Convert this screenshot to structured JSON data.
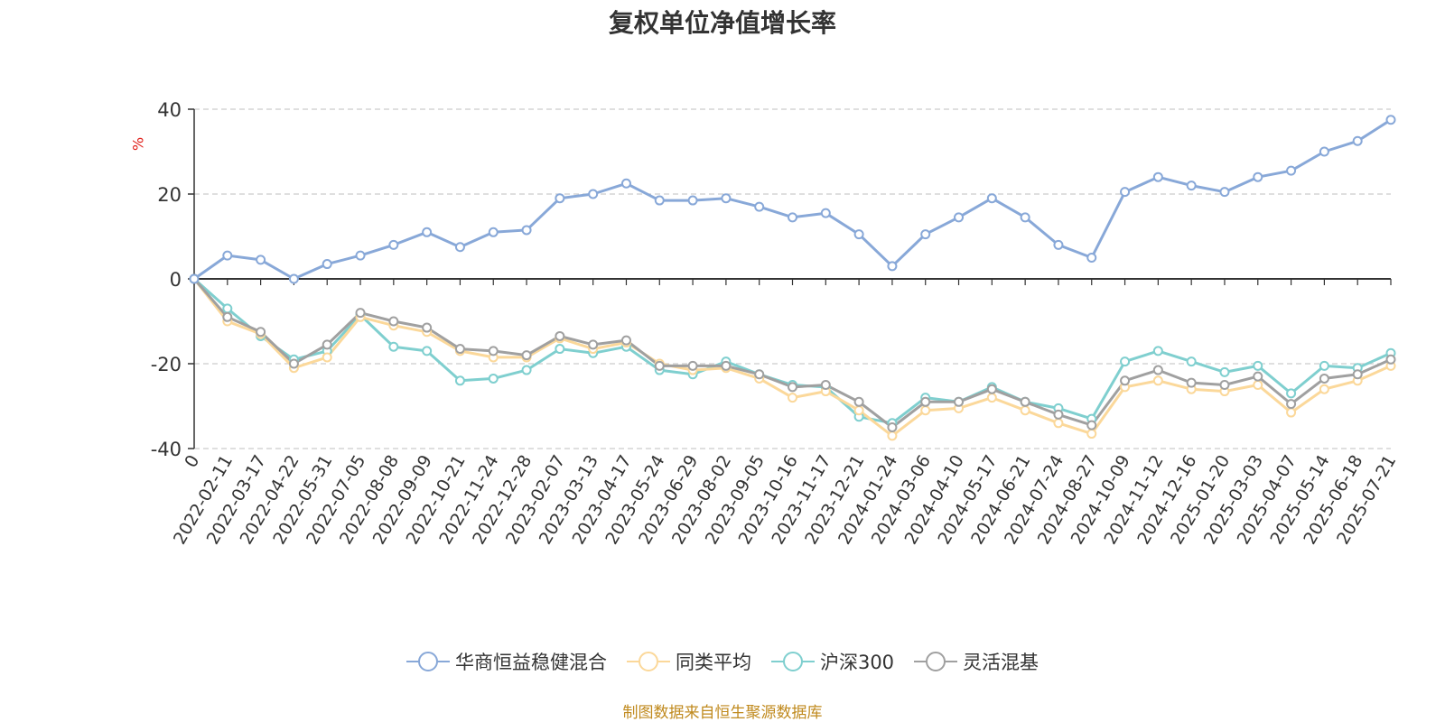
{
  "title": "复权单位净值增长率",
  "unit_label": "%",
  "source_note": "制图数据来自恒生聚源数据库",
  "chart_data": {
    "type": "line",
    "title": "复权单位净值增长率",
    "ylabel": "%",
    "ylim": [
      -40,
      40
    ],
    "yticks": [
      40,
      20,
      0,
      -20,
      -40
    ],
    "grid": "horizontal-dashed",
    "legend_position": "bottom",
    "x": [
      "0",
      "2022-02-11",
      "2022-03-17",
      "2022-04-22",
      "2022-05-31",
      "2022-07-05",
      "2022-08-08",
      "2022-09-09",
      "2022-10-21",
      "2022-11-24",
      "2022-12-28",
      "2023-02-07",
      "2023-03-13",
      "2023-04-17",
      "2023-05-24",
      "2023-06-29",
      "2023-08-02",
      "2023-09-05",
      "2023-10-16",
      "2023-11-17",
      "2023-12-21",
      "2024-01-24",
      "2024-03-06",
      "2024-04-10",
      "2024-05-17",
      "2024-06-21",
      "2024-07-24",
      "2024-08-27",
      "2024-10-09",
      "2024-11-12",
      "2024-12-16",
      "2025-01-20",
      "2025-03-03",
      "2025-04-07",
      "2025-05-14",
      "2025-06-18",
      "2025-07-21"
    ],
    "series": [
      {
        "name": "华商恒益稳健混合",
        "color": "#88a8d8",
        "values": [
          0,
          5.5,
          4.5,
          0,
          3.5,
          5.5,
          8,
          11,
          7.5,
          11,
          11.5,
          19,
          20,
          22.5,
          18.5,
          18.5,
          19,
          17,
          14.5,
          15.5,
          10.5,
          3,
          10.5,
          14.5,
          19,
          14.5,
          8,
          5,
          20.5,
          24,
          22,
          20.5,
          24,
          25.5,
          30,
          32.5,
          37.5
        ]
      },
      {
        "name": "同类平均",
        "color": "#fbd89a",
        "values": [
          0,
          -10,
          -13,
          -21,
          -18.5,
          -9,
          -11,
          -12.5,
          -17,
          -18.5,
          -18.5,
          -14,
          -16.5,
          -15,
          -20,
          -21.5,
          -21,
          -23.5,
          -28,
          -26.5,
          -31,
          -37,
          -31,
          -30.5,
          -28,
          -31,
          -34,
          -36.5,
          -25.5,
          -24,
          -26,
          -26.5,
          -25,
          -31.5,
          -26,
          -24,
          -20.5
        ]
      },
      {
        "name": "沪深300",
        "color": "#7fcfcf",
        "values": [
          0,
          -7,
          -13.5,
          -19,
          -17,
          -8.5,
          -16,
          -17,
          -24,
          -23.5,
          -21.5,
          -16.5,
          -17.5,
          -16,
          -21.5,
          -22.5,
          -19.5,
          -22.5,
          -25,
          -25.5,
          -32.5,
          -34,
          -28,
          -29,
          -25.5,
          -29,
          -30.5,
          -33,
          -19.5,
          -17,
          -19.5,
          -22,
          -20.5,
          -27,
          -20.5,
          -21,
          -17.5
        ]
      },
      {
        "name": "灵活混基",
        "color": "#a0a0a0",
        "values": [
          0,
          -9,
          -12.5,
          -20,
          -15.5,
          -8,
          -10,
          -11.5,
          -16.5,
          -17,
          -18,
          -13.5,
          -15.5,
          -14.5,
          -20.5,
          -20.5,
          -20.5,
          -22.5,
          -25.5,
          -25,
          -29,
          -35,
          -29,
          -29,
          -26,
          -29,
          -32,
          -34.5,
          -24,
          -21.5,
          -24.5,
          -25,
          -23,
          -29.5,
          -23.5,
          -22.5,
          -19
        ]
      }
    ]
  },
  "legend": {
    "items": [
      {
        "label": "华商恒益稳健混合"
      },
      {
        "label": "同类平均"
      },
      {
        "label": "沪深300"
      },
      {
        "label": "灵活混基"
      }
    ]
  }
}
